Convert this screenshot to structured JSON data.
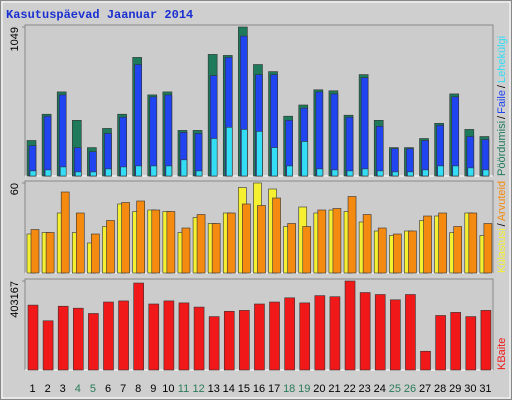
{
  "chart_data": [
    {
      "type": "bar",
      "title": "Kasutuspäevad Jaanuar 2014",
      "ylim": [
        0,
        1049
      ],
      "yticks": [
        1049
      ],
      "legend_separator": "/",
      "series": [
        {
          "name": "Pöördumisi",
          "color": "#1e7a5a",
          "values": [
            250,
            435,
            592,
            392,
            200,
            335,
            435,
            835,
            571,
            592,
            321,
            321,
            856,
            849,
            1049,
            785,
            735,
            421,
            500,
            607,
            600,
            428,
            714,
            392,
            200,
            200,
            264,
            371,
            578,
            328,
            278
          ]
        },
        {
          "name": "Faile",
          "color": "#1f44f0",
          "values": [
            214,
            421,
            571,
            200,
            171,
            300,
            414,
            785,
            557,
            571,
            307,
            300,
            707,
            835,
            985,
            714,
            714,
            392,
            478,
            592,
            578,
            414,
            692,
            350,
            193,
            193,
            250,
            357,
            557,
            278,
            257
          ]
        },
        {
          "name": "Lehekülgi",
          "color": "#33ddf5",
          "values": [
            36,
            43,
            64,
            29,
            29,
            50,
            64,
            71,
            71,
            71,
            114,
            36,
            264,
            343,
            328,
            314,
            200,
            71,
            243,
            50,
            43,
            36,
            50,
            36,
            29,
            29,
            43,
            71,
            71,
            57,
            43
          ]
        }
      ]
    },
    {
      "type": "bar",
      "ylim": [
        0,
        60
      ],
      "yticks": [
        60
      ],
      "legend_separator": "/",
      "series": [
        {
          "name": "Külastusi",
          "color": "#f5f030",
          "values": [
            26,
            27,
            40,
            27,
            20,
            31,
            46,
            41,
            42,
            41,
            27,
            37,
            33,
            40,
            57,
            60,
            56,
            31,
            44,
            40,
            42,
            41,
            34,
            28,
            25,
            28,
            35,
            38,
            27,
            40,
            25
          ]
        },
        {
          "name": "Arvuteid",
          "color": "#f58a10",
          "values": [
            29,
            27,
            54,
            40,
            26,
            35,
            47,
            48,
            42,
            41,
            30,
            39,
            33,
            40,
            46,
            45,
            50,
            33,
            31,
            42,
            43,
            51,
            39,
            30,
            26,
            28,
            38,
            40,
            31,
            40,
            33
          ]
        }
      ]
    },
    {
      "type": "bar",
      "ylim": [
        0,
        403167
      ],
      "yticks": [
        403167
      ],
      "categories": [
        "1",
        "2",
        "3",
        "4",
        "5",
        "6",
        "7",
        "8",
        "9",
        "10",
        "11",
        "12",
        "13",
        "14",
        "15",
        "16",
        "17",
        "18",
        "19",
        "20",
        "21",
        "22",
        "23",
        "24",
        "25",
        "26",
        "27",
        "28",
        "29",
        "30",
        "31"
      ],
      "category_colors": [
        "#000",
        "#000",
        "#000",
        "#2a7a5a",
        "#2a7a5a",
        "#000",
        "#000",
        "#000",
        "#000",
        "#000",
        "#2a7a5a",
        "#2a7a5a",
        "#000",
        "#000",
        "#000",
        "#000",
        "#000",
        "#2a7a5a",
        "#2a7a5a",
        "#000",
        "#000",
        "#000",
        "#000",
        "#000",
        "#2a7a5a",
        "#2a7a5a",
        "#000",
        "#000",
        "#000",
        "#000",
        "#000"
      ],
      "series": [
        {
          "name": "KBaite",
          "color": "#f01818",
          "values": [
            294000,
            223000,
            289000,
            280000,
            256000,
            308000,
            313000,
            394000,
            299000,
            313000,
            304000,
            285000,
            242000,
            266000,
            270000,
            299000,
            308000,
            327000,
            304000,
            337000,
            332000,
            403167,
            351000,
            342000,
            318000,
            342000,
            85000,
            247000,
            261000,
            242000,
            270000
          ]
        }
      ]
    }
  ]
}
